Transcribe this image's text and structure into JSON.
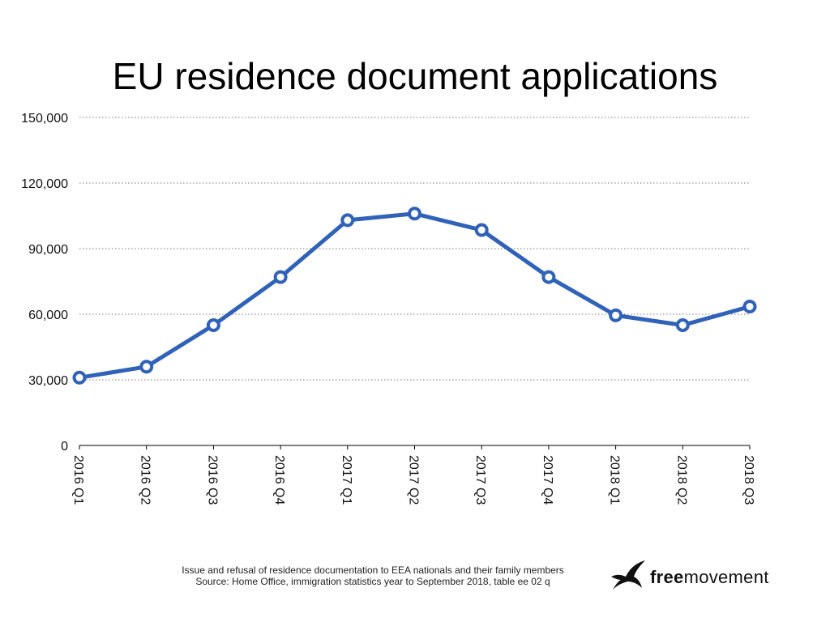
{
  "chart_data": {
    "type": "line",
    "title": "EU residence document applications",
    "xlabel": "",
    "ylabel": "",
    "categories": [
      "2016 Q1",
      "2016 Q2",
      "2016 Q3",
      "2016 Q4",
      "2017 Q1",
      "2017 Q2",
      "2017 Q3",
      "2017 Q4",
      "2018 Q1",
      "2018 Q2",
      "2018 Q3"
    ],
    "series": [
      {
        "values": [
          31000,
          36000,
          55000,
          77000,
          103000,
          106000,
          98500,
          77000,
          59500,
          55000,
          63500
        ],
        "color": "#2f62b8"
      }
    ],
    "ylim": [
      0,
      150000
    ],
    "yticks": [
      "0",
      "30,000",
      "60,000",
      "90,000",
      "120,000",
      "150,000"
    ],
    "ytick_values": [
      0,
      30000,
      60000,
      90000,
      120000,
      150000
    ],
    "grid": "horizontal dotted",
    "legend": "none"
  },
  "footer": {
    "note_line1": "Issue and refusal of residence documentation to EEA nationals and their family members",
    "note_line2": "Source: Home Office, immigration statistics year to September 2018, table ee 02 q"
  },
  "brand": {
    "text_bold": "free",
    "text_regular": "movement",
    "icon": "crane-bird-icon"
  }
}
